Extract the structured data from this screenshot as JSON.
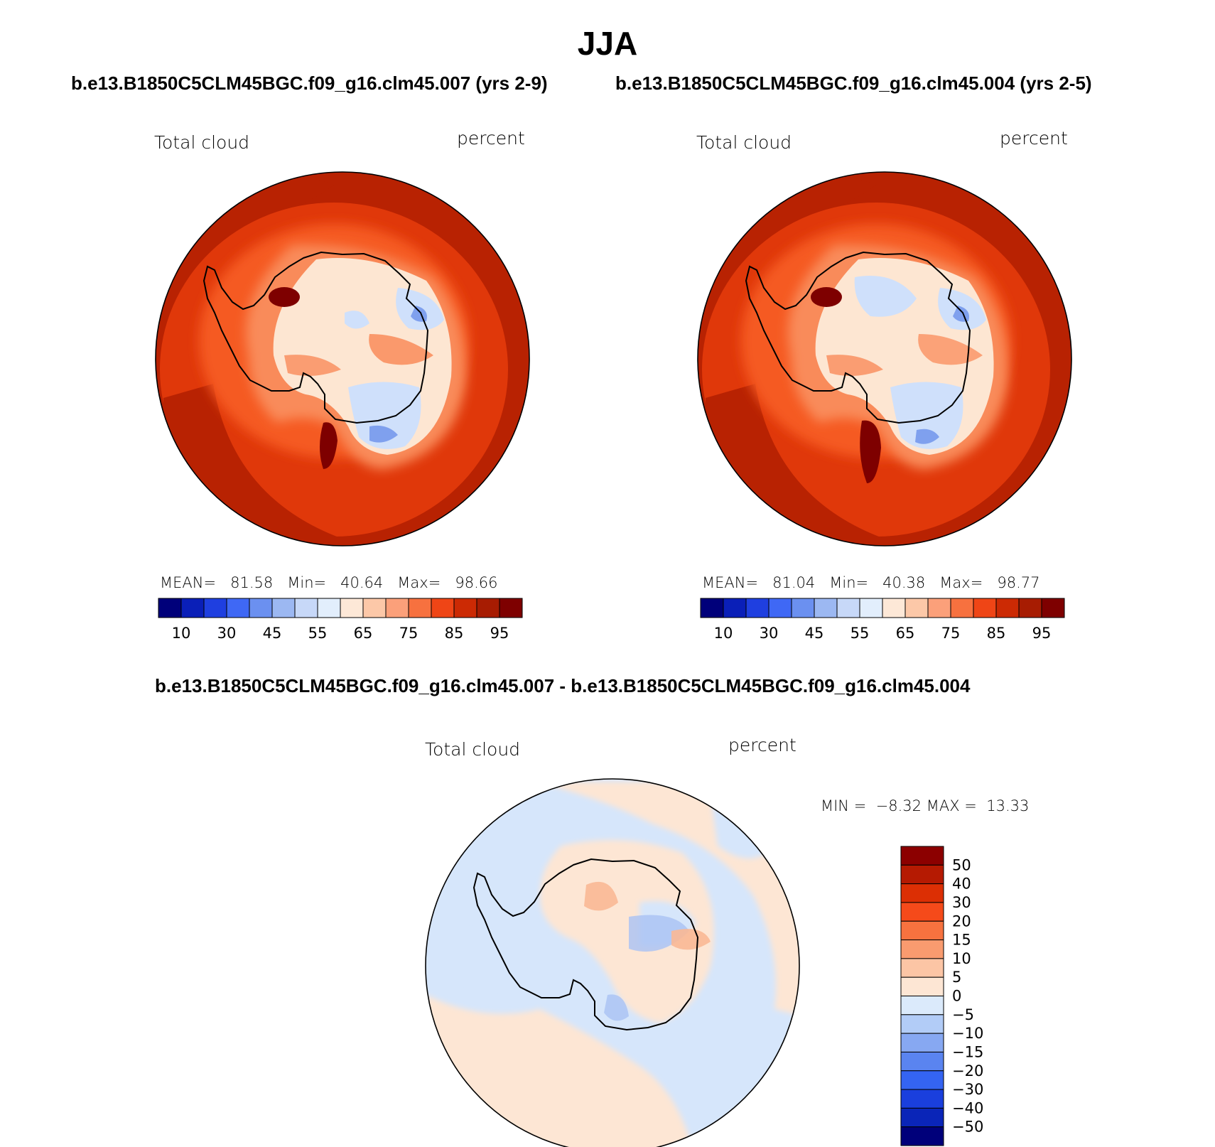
{
  "title": "JJA",
  "panels": [
    {
      "case": "b.e13.B1850C5CLM45BGC.f09_g16.clm45.007 (yrs 2-9)",
      "variable": "Total cloud",
      "units": "percent",
      "mean_label": "MEAN=",
      "mean": "81.58",
      "min_label": "Min=",
      "min": "40.64",
      "max_label": "Max=",
      "max": "98.66"
    },
    {
      "case": "b.e13.B1850C5CLM45BGC.f09_g16.clm45.004 (yrs 2-5)",
      "variable": "Total cloud",
      "units": "percent",
      "mean_label": "MEAN=",
      "mean": "81.04",
      "min_label": "Min=",
      "min": "40.38",
      "max_label": "Max=",
      "max": "98.77"
    }
  ],
  "difference": {
    "title": "b.e13.B1850C5CLM45BGC.f09_g16.clm45.007 - b.e13.B1850C5CLM45BGC.f09_g16.clm45.004",
    "variable": "Total cloud",
    "units": "percent",
    "min_label": "MIN =",
    "min": "−8.32",
    "max_label": "MAX =",
    "max": "13.33"
  },
  "colorbar_abs": {
    "colors": [
      "#00007a",
      "#0a1fb8",
      "#1f3fe0",
      "#3f68f5",
      "#6b90f0",
      "#9cb8f2",
      "#c7d8f8",
      "#e2eefc",
      "#fde8d7",
      "#fcc8a8",
      "#fba07a",
      "#f7713f",
      "#ef4516",
      "#cc2a04",
      "#a71c02",
      "#7e0000"
    ],
    "tick_labels": [
      "10",
      "30",
      "45",
      "55",
      "65",
      "75",
      "85",
      "95"
    ]
  },
  "colorbar_diff": {
    "colors_top_to_bottom": [
      "#8c0000",
      "#b51a02",
      "#dc2f04",
      "#f54a1a",
      "#f7723f",
      "#f99b6f",
      "#fcc5a5",
      "#fde6d4",
      "#dbeafb",
      "#b2ccf7",
      "#87a8f2",
      "#5a84f0",
      "#3464f2",
      "#1a3fdd",
      "#0a25b8",
      "#00007a"
    ],
    "tick_labels": [
      "50",
      "40",
      "30",
      "20",
      "15",
      "10",
      "5",
      "0",
      "−5",
      "−10",
      "−15",
      "−20",
      "−30",
      "−40",
      "−50"
    ]
  },
  "map_colors": {
    "ocean_outer": "#b82202",
    "ocean_mid": "#e0380a",
    "ocean_inner": "#f55a22",
    "coast_glow": "#f98b5a",
    "ice_light": "#fde6d2",
    "ice_blue": "#cfe0fb",
    "ice_blue_deep": "#7fa0ee",
    "dark_spot": "#7e0000",
    "diff_pos": "#fde6d4",
    "diff_neg": "#d6e6fb",
    "diff_pos2": "#f9b895",
    "diff_neg2": "#a9c2f4"
  }
}
